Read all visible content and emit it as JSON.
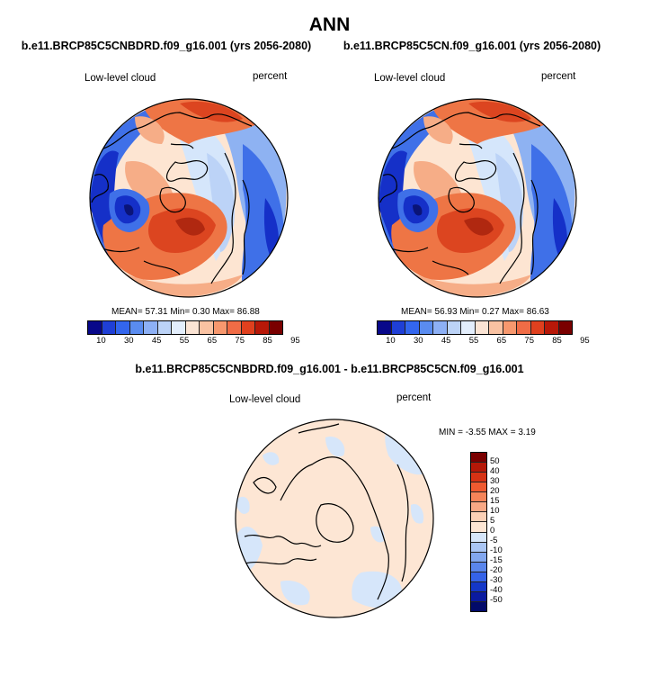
{
  "title": "ANN",
  "panels": [
    {
      "case": "b.e11.BRCP85C5CNBDRD.f09_g16.001 (yrs 2056-2080)",
      "variable": "Low-level cloud",
      "units": "percent",
      "stats": "MEAN=  57.31  Min=   0.30  Max=  86.88"
    },
    {
      "case": "b.e11.BRCP85C5CN.f09_g16.001 (yrs 2056-2080)",
      "variable": "Low-level cloud",
      "units": "percent",
      "stats": "MEAN=  56.93  Min=   0.27  Max=  86.63"
    }
  ],
  "diff": {
    "case": "b.e11.BRCP85C5CNBDRD.f09_g16.001 - b.e11.BRCP85C5CN.f09_g16.001",
    "variable": "Low-level cloud",
    "units": "percent",
    "stats": "MIN =  -3.55 MAX =   3.19"
  },
  "colorbar_abs": {
    "labels": [
      "10",
      "30",
      "45",
      "55",
      "65",
      "75",
      "85",
      "95"
    ],
    "colors": [
      "#08088a",
      "#1f3fd6",
      "#3366ee",
      "#5a8cf0",
      "#8db0f5",
      "#bcd3f7",
      "#e3eefc",
      "#fbe4d4",
      "#f9c2a2",
      "#f7986e",
      "#f06c46",
      "#e0401e",
      "#b81808",
      "#7a0000"
    ]
  },
  "colorbar_diff": {
    "labels": [
      "50",
      "40",
      "30",
      "20",
      "15",
      "10",
      "5",
      "0",
      "-5",
      "-10",
      "-15",
      "-20",
      "-30",
      "-40",
      "-50"
    ],
    "colors": [
      "#7a0000",
      "#b51808",
      "#d63214",
      "#ef5a30",
      "#f58459",
      "#f8a885",
      "#fbd0b6",
      "#fde6d4",
      "#d6e6fa",
      "#aac6f5",
      "#82a7ef",
      "#5a86ec",
      "#3563e8",
      "#1437c8",
      "#0a1aa0",
      "#020a6a"
    ]
  },
  "map_colors": {
    "deep_blue": "#1530c8",
    "blue": "#3f70e8",
    "light_blue": "#8eb2f2",
    "pale_blue": "#d5e6fb",
    "peach": "#fde5d2",
    "salmon": "#f6ad87",
    "orange": "#ee7545",
    "red": "#dc4520",
    "dark_red": "#b02810",
    "navy": "#0a1478"
  }
}
